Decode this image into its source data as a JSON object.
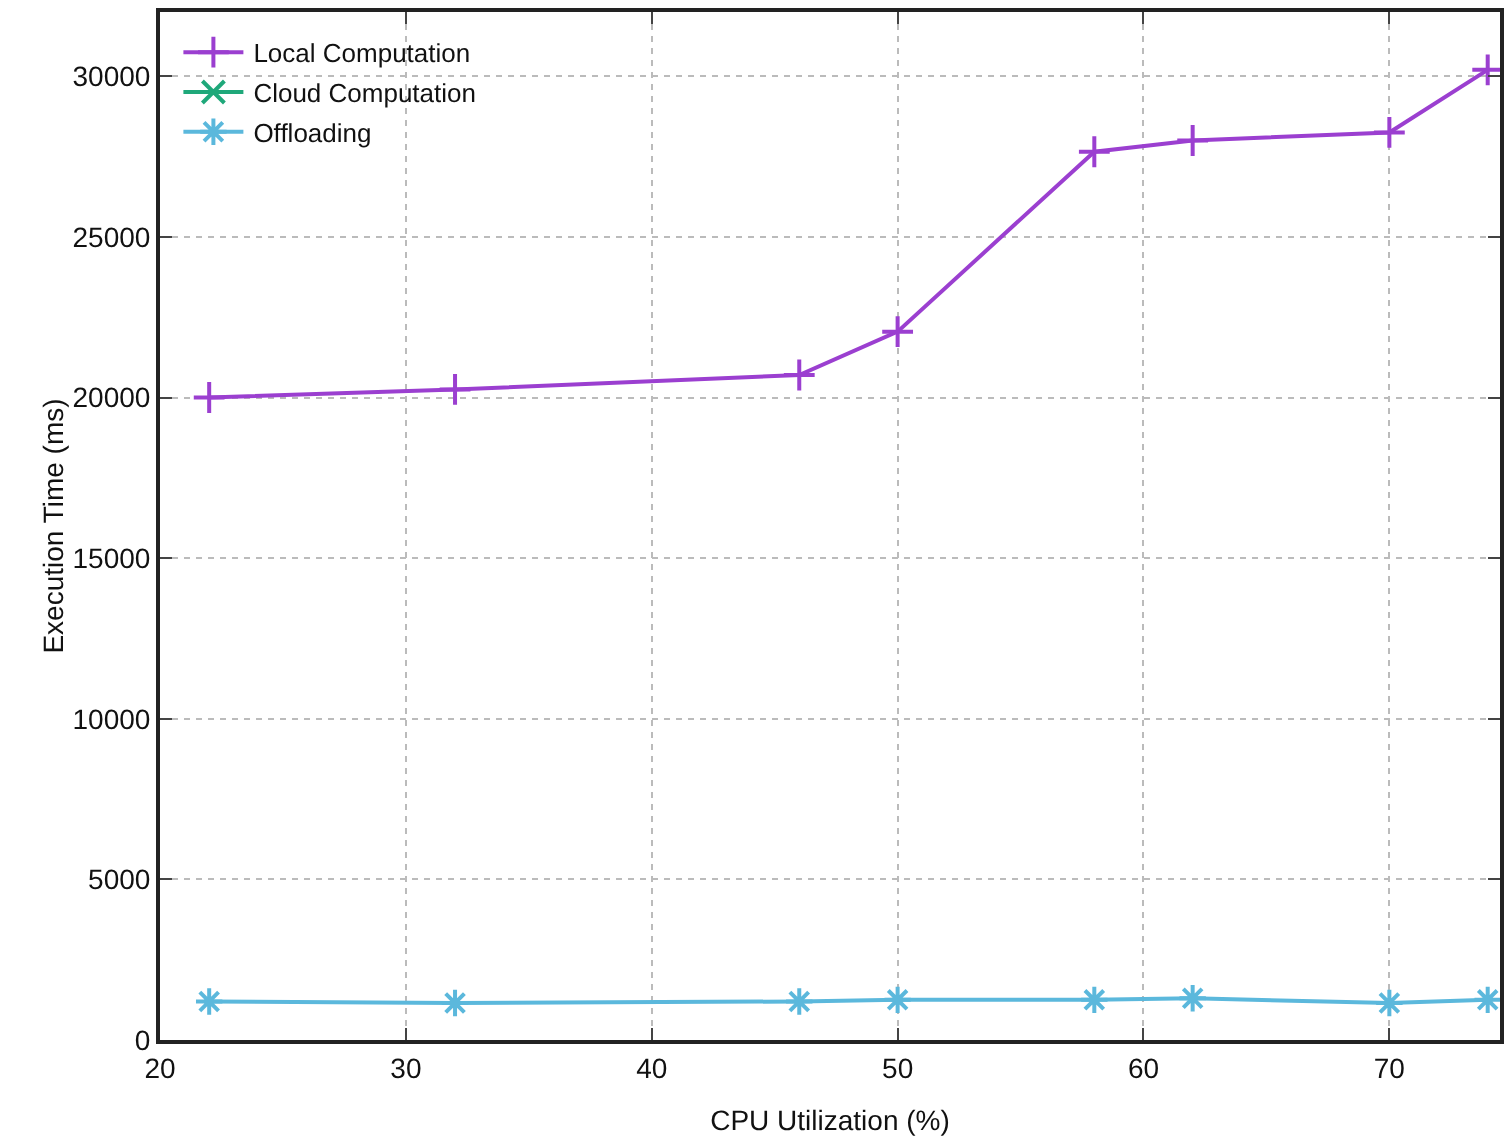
{
  "chart_data": {
    "type": "line",
    "xlabel": "CPU Utilization (%)",
    "ylabel": "Execution Time (ms)",
    "x": [
      22,
      32,
      46,
      50,
      58,
      62,
      70,
      74
    ],
    "series": [
      {
        "name": "Local Computation",
        "color": "#9b3fd0",
        "marker": "cross",
        "values": [
          20000,
          20250,
          20700,
          22050,
          27650,
          28000,
          28250,
          30200
        ]
      },
      {
        "name": "Cloud Computation",
        "color": "#1fa87a",
        "marker": "cross",
        "values": [
          null,
          null,
          null,
          null,
          null,
          null,
          null,
          null
        ]
      },
      {
        "name": "Offloading",
        "color": "#5bb8dc",
        "marker": "cross",
        "values": [
          1200,
          1150,
          1200,
          1250,
          1250,
          1300,
          1150,
          1250
        ]
      }
    ],
    "xlim": [
      20,
      74.5
    ],
    "xticks": [
      20,
      30,
      40,
      50,
      60,
      70
    ],
    "ylim": [
      0,
      32000
    ],
    "yticks": [
      0,
      5000,
      10000,
      15000,
      20000,
      25000,
      30000
    ],
    "grid": true,
    "legend": "top left",
    "line_style": "solid"
  }
}
